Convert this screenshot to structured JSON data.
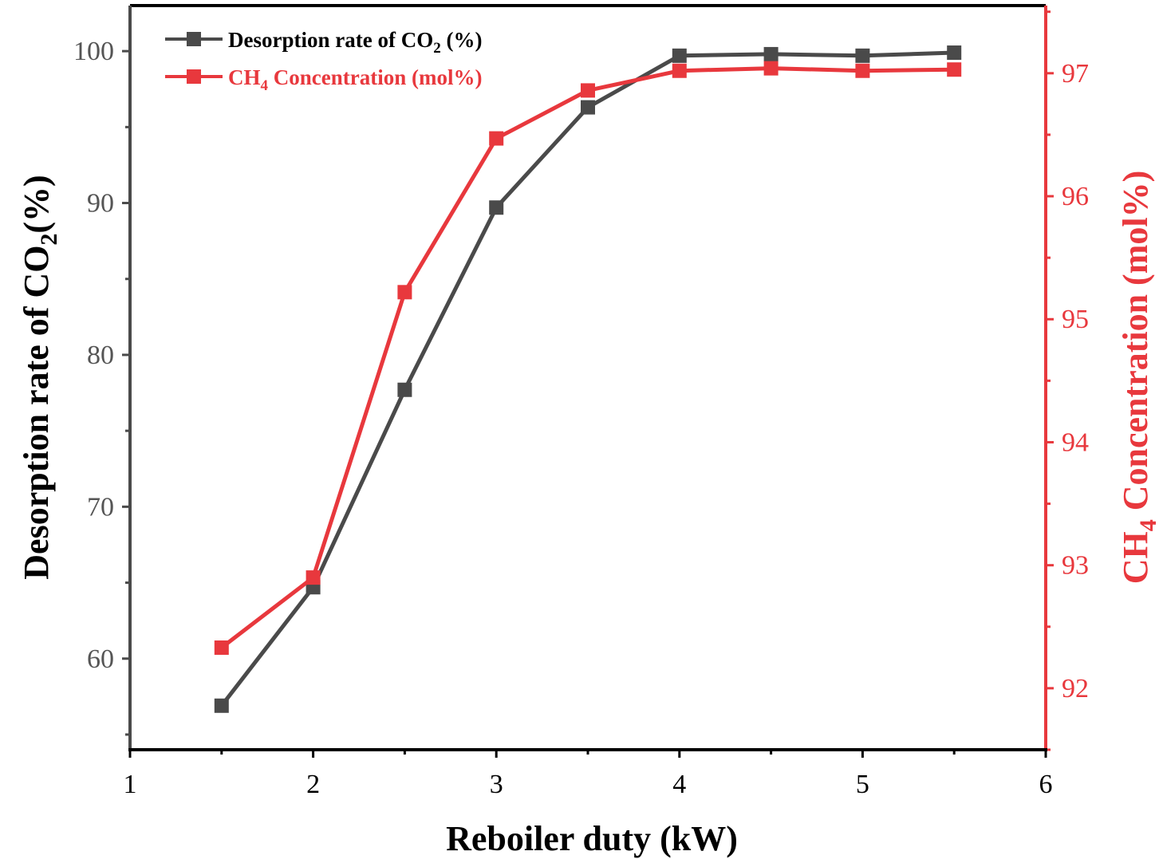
{
  "chart_data": {
    "type": "line",
    "title": "",
    "xlabel": "Reboiler duty (kW)",
    "ylabel_left": {
      "main": "Desorption rate of CO",
      "sub": "2",
      "tail": "(%)"
    },
    "ylabel_right": {
      "main": "CH",
      "sub": "4",
      "tail": " Concentration (mol%)"
    },
    "xlim": [
      1,
      6
    ],
    "ylim_left": [
      54,
      103
    ],
    "ylim_right": [
      91.5,
      97.55
    ],
    "x_ticks": [
      1,
      2,
      3,
      4,
      5,
      6
    ],
    "y_ticks_left": [
      60,
      70,
      80,
      90,
      100
    ],
    "y_ticks_right": [
      92,
      93,
      94,
      95,
      96,
      97
    ],
    "legend_position": "top-left",
    "series": [
      {
        "name": "Desorption rate of CO2 (%)",
        "legend_label": {
          "main": "Desorption rate of CO",
          "sub": "2",
          "tail": " (%)"
        },
        "axis": "left",
        "color": "#4a4a4a",
        "x": [
          1.5,
          2.0,
          2.5,
          3.0,
          3.5,
          4.0,
          4.5,
          5.0,
          5.5
        ],
        "y": [
          56.9,
          64.7,
          77.7,
          89.7,
          96.3,
          99.7,
          99.8,
          99.7,
          99.9
        ]
      },
      {
        "name": "CH4 Concentration (mol%)",
        "legend_label": {
          "main": "CH",
          "sub": "4",
          "tail": " Concentration (mol%)"
        },
        "axis": "right",
        "color": "#e8383d",
        "x": [
          1.5,
          2.0,
          2.5,
          3.0,
          3.5,
          4.0,
          4.5,
          5.0,
          5.5
        ],
        "y": [
          92.33,
          92.9,
          95.22,
          96.47,
          96.86,
          97.02,
          97.04,
          97.02,
          97.03
        ]
      }
    ]
  }
}
